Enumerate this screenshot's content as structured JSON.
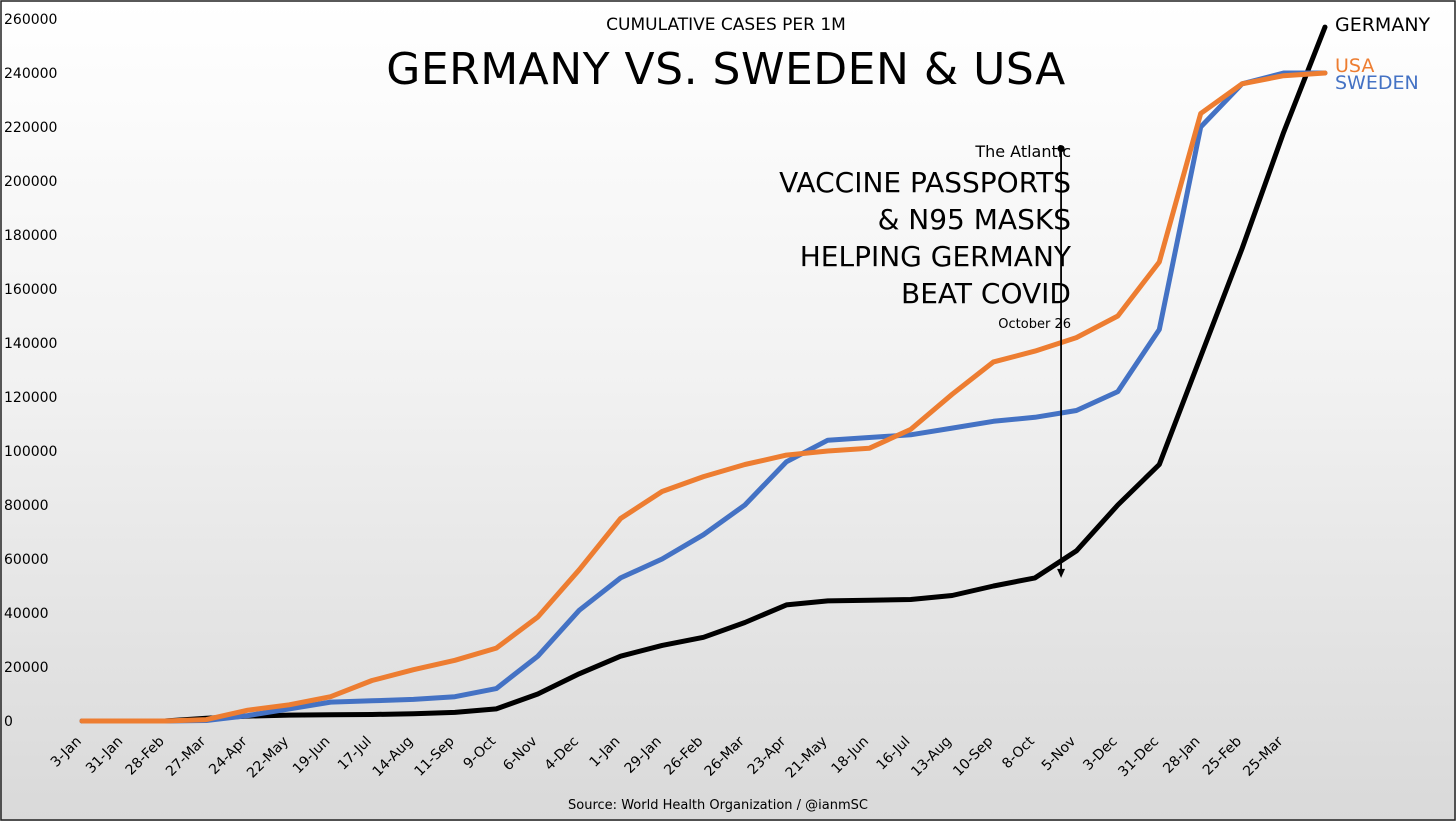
{
  "chart_data": {
    "type": "line",
    "subtitle": "CUMULATIVE CASES PER 1M",
    "title": "GERMANY VS. SWEDEN & USA",
    "source": "Source: World Health Organization / @ianmSC",
    "ylim": [
      0,
      260000
    ],
    "yticks": [
      0,
      20000,
      40000,
      60000,
      80000,
      100000,
      120000,
      140000,
      160000,
      180000,
      200000,
      220000,
      240000,
      260000
    ],
    "categories": [
      "3-Jan",
      "31-Jan",
      "28-Feb",
      "27-Mar",
      "24-Apr",
      "22-May",
      "19-Jun",
      "17-Jul",
      "14-Aug",
      "11-Sep",
      "9-Oct",
      "6-Nov",
      "4-Dec",
      "1-Jan",
      "29-Jan",
      "26-Feb",
      "26-Mar",
      "23-Apr",
      "21-May",
      "18-Jun",
      "16-Jul",
      "13-Aug",
      "10-Sep",
      "8-Oct",
      "5-Nov",
      "3-Dec",
      "31-Dec",
      "28-Jan",
      "25-Feb",
      "25-Mar"
    ],
    "series": [
      {
        "name": "GERMANY",
        "color": "#000000",
        "values": [
          0,
          0,
          0,
          1000,
          1800,
          2200,
          2300,
          2400,
          2700,
          3200,
          4500,
          10000,
          17500,
          24000,
          28000,
          31000,
          36500,
          43000,
          44500,
          44700,
          45000,
          46500,
          50000,
          53000,
          63000,
          80000,
          95000,
          135000,
          175000,
          218000
        ],
        "end": 257000
      },
      {
        "name": "USA",
        "color": "#ED7D31",
        "values": [
          0,
          0,
          0,
          500,
          4000,
          6000,
          9000,
          15000,
          19000,
          22500,
          27000,
          38500,
          56000,
          75000,
          85000,
          90500,
          95000,
          98500,
          100000,
          101000,
          108000,
          121000,
          133000,
          137000,
          142000,
          150000,
          170000,
          225000,
          236000,
          239000
        ],
        "end": 240000
      },
      {
        "name": "SWEDEN",
        "color": "#4472C4",
        "values": [
          0,
          0,
          0,
          200,
          2000,
          4500,
          7000,
          7500,
          8000,
          9000,
          12000,
          24000,
          41000,
          53000,
          60000,
          69000,
          80000,
          96000,
          104000,
          105000,
          106000,
          108500,
          111000,
          112500,
          115000,
          122000,
          145000,
          220000,
          236000,
          240000
        ],
        "end": 240000
      }
    ],
    "annotation": {
      "source_label": "The Atlantic",
      "headline": [
        "VACCINE PASSPORTS",
        "& N95 MASKS",
        "HELPING GERMANY",
        "BEAT COVID"
      ],
      "date": "October 26",
      "arrow_start_value": 212000,
      "arrow_end_value": 53000,
      "position_category": "8-Oct",
      "offset_fraction": 0.63
    }
  }
}
